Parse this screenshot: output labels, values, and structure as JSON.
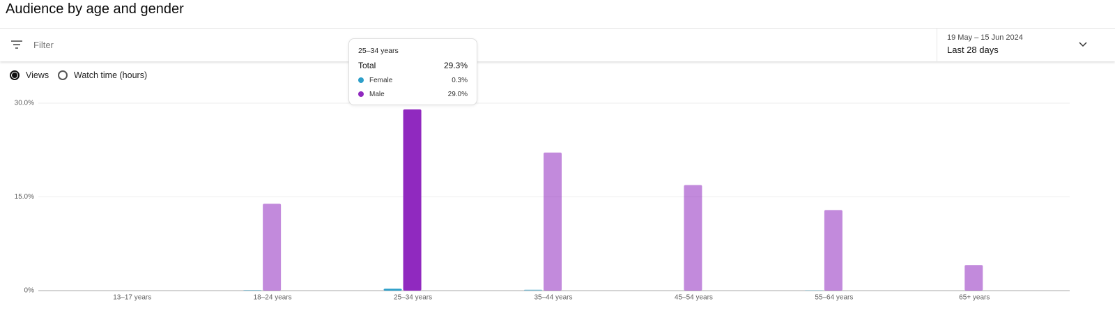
{
  "header": {
    "title": "Audience by age and gender"
  },
  "filter": {
    "placeholder": "Filter"
  },
  "date_range": {
    "range": "19 May – 15 Jun 2024",
    "label": "Last 28 days"
  },
  "metric_options": [
    "Views",
    "Watch time (hours)"
  ],
  "tooltip": {
    "category": "25–34 years",
    "total_label": "Total",
    "total_value": "29.3%",
    "rows": [
      {
        "name": "Female",
        "value": "0.3%"
      },
      {
        "name": "Male",
        "value": "29.0%"
      }
    ]
  },
  "chart_data": {
    "type": "bar",
    "categories": [
      "13–17 years",
      "18–24 years",
      "25–34 years",
      "35–44 years",
      "45–54 years",
      "55–64 years",
      "65+ years"
    ],
    "series": [
      {
        "name": "Female",
        "color": "#2d9fc9",
        "values": [
          0,
          0.1,
          0.3,
          0.15,
          0,
          0.05,
          0
        ]
      },
      {
        "name": "Male",
        "color": "#9029bf",
        "values": [
          0,
          13.9,
          29.0,
          22.1,
          16.9,
          12.9,
          4.1
        ]
      }
    ],
    "ylim": [
      0,
      30
    ],
    "yticks": [
      {
        "value": 0,
        "label": "0%"
      },
      {
        "value": 15,
        "label": "15.0%"
      },
      {
        "value": 30,
        "label": "30.0%"
      }
    ],
    "grid": true
  }
}
